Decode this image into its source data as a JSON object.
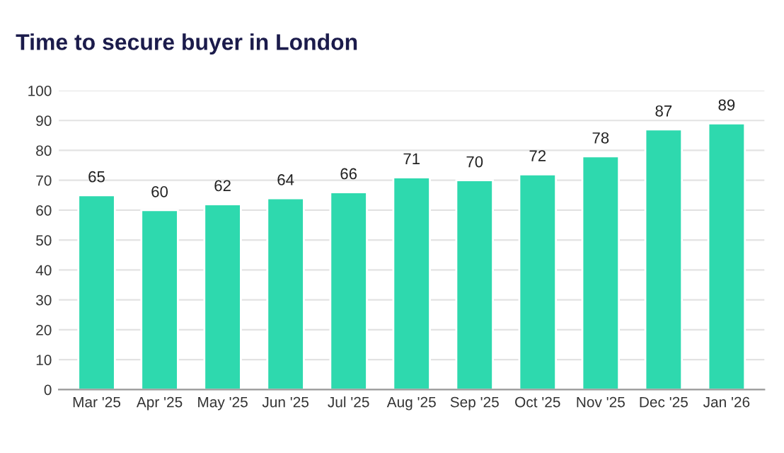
{
  "chart_data": {
    "type": "bar",
    "title": "Time to secure buyer in London",
    "categories": [
      "Mar '25",
      "Apr '25",
      "May '25",
      "Jun '25",
      "Jul '25",
      "Aug '25",
      "Sep '25",
      "Oct '25",
      "Nov '25",
      "Dec '25",
      "Jan '26"
    ],
    "values": [
      65,
      60,
      62,
      64,
      66,
      71,
      70,
      72,
      78,
      87,
      89
    ],
    "color": "#2ed9ae",
    "ylim": [
      0,
      100
    ],
    "yticks": [
      0,
      10,
      20,
      30,
      40,
      50,
      60,
      70,
      80,
      90,
      100
    ],
    "grid": "y",
    "data_labels": true
  }
}
